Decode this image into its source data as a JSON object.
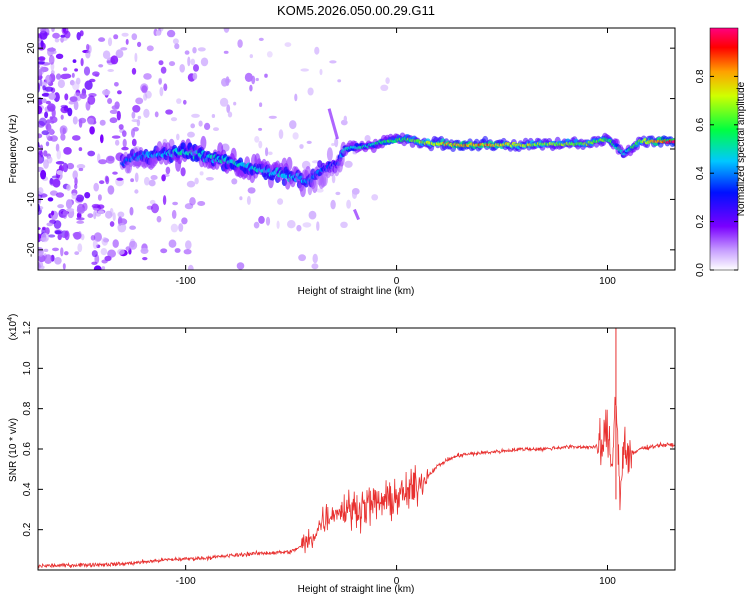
{
  "title": "KOM5.2026.050.00.29.G11",
  "chart_data": [
    {
      "type": "heatmap",
      "xlabel": "Height of straight line (km)",
      "ylabel": "Frequency (Hz)",
      "xlim": [
        -170,
        132
      ],
      "ylim": [
        -24,
        24
      ],
      "xticks": [
        -100,
        0,
        100
      ],
      "xtick_labels": [
        "-100",
        "0",
        "100"
      ],
      "yticks": [
        -20,
        -10,
        0,
        10,
        20
      ],
      "ytick_labels": [
        "-20",
        "-10",
        "0",
        "10",
        "20"
      ],
      "colorbar": {
        "label": "Normalized spectral amplitude",
        "range": [
          0.0,
          1.0
        ],
        "ticks": [
          0.0,
          0.2,
          0.4,
          0.6,
          0.8
        ],
        "tick_labels": [
          "0.0",
          "0.2",
          "0.4",
          "0.6",
          "0.8"
        ]
      },
      "ridge": [
        {
          "x": -130,
          "y": -2.5,
          "a": 0.35
        },
        {
          "x": -120,
          "y": -1.5,
          "a": 0.4
        },
        {
          "x": -110,
          "y": -1.0,
          "a": 0.45
        },
        {
          "x": -100,
          "y": -0.5,
          "a": 0.5
        },
        {
          "x": -90,
          "y": -1.5,
          "a": 0.45
        },
        {
          "x": -80,
          "y": -2.5,
          "a": 0.5
        },
        {
          "x": -70,
          "y": -3.5,
          "a": 0.45
        },
        {
          "x": -60,
          "y": -4.5,
          "a": 0.45
        },
        {
          "x": -50,
          "y": -5.5,
          "a": 0.45
        },
        {
          "x": -42,
          "y": -6.5,
          "a": 0.4
        },
        {
          "x": -35,
          "y": -4.0,
          "a": 0.35
        },
        {
          "x": -28,
          "y": -3.0,
          "a": 0.3
        },
        {
          "x": -25,
          "y": 0.0,
          "a": 0.45
        },
        {
          "x": -15,
          "y": 0.5,
          "a": 0.5
        },
        {
          "x": -5,
          "y": 1.5,
          "a": 0.55
        },
        {
          "x": 5,
          "y": 2.0,
          "a": 0.6
        },
        {
          "x": 15,
          "y": 1.2,
          "a": 0.7
        },
        {
          "x": 30,
          "y": 0.8,
          "a": 0.85
        },
        {
          "x": 45,
          "y": 0.8,
          "a": 0.8
        },
        {
          "x": 60,
          "y": 0.8,
          "a": 0.7
        },
        {
          "x": 75,
          "y": 1.0,
          "a": 0.65
        },
        {
          "x": 90,
          "y": 1.0,
          "a": 0.65
        },
        {
          "x": 100,
          "y": 2.0,
          "a": 0.6
        },
        {
          "x": 108,
          "y": -1.0,
          "a": 0.45
        },
        {
          "x": 115,
          "y": 1.5,
          "a": 0.65
        },
        {
          "x": 125,
          "y": 1.5,
          "a": 0.85
        },
        {
          "x": 132,
          "y": 1.5,
          "a": 0.95
        }
      ]
    },
    {
      "type": "line",
      "xlabel": "Height of straight line (km)",
      "ylabel": "SNR (10 * v/v)",
      "scale_label": "(x10",
      "scale_exp": "4",
      "scale_close": ")",
      "xlim": [
        -170,
        132
      ],
      "ylim": [
        0.0,
        1.2
      ],
      "xticks": [
        -100,
        0,
        100
      ],
      "xtick_labels": [
        "-100",
        "0",
        "100"
      ],
      "yticks": [
        0.2,
        0.4,
        0.6,
        0.8,
        1.0,
        1.2
      ],
      "ytick_labels": [
        "0.2",
        "0.4",
        "0.6",
        "0.8",
        "1.0",
        "1.2"
      ],
      "series": [
        {
          "name": "SNR",
          "color": "#e8302f",
          "x": [
            -170,
            -150,
            -130,
            -110,
            -90,
            -70,
            -50,
            -40,
            -35,
            -30,
            -25,
            -20,
            -15,
            -10,
            -5,
            0,
            5,
            10,
            15,
            20,
            25,
            30,
            40,
            50,
            60,
            70,
            80,
            90,
            95,
            98,
            100,
            102,
            104,
            106,
            108,
            110,
            115,
            120,
            125,
            132
          ],
          "y": [
            0.02,
            0.025,
            0.03,
            0.05,
            0.06,
            0.08,
            0.09,
            0.15,
            0.25,
            0.28,
            0.3,
            0.3,
            0.32,
            0.33,
            0.34,
            0.36,
            0.38,
            0.42,
            0.47,
            0.52,
            0.55,
            0.57,
            0.58,
            0.59,
            0.6,
            0.6,
            0.61,
            0.61,
            0.61,
            0.62,
            0.7,
            0.5,
            0.9,
            0.35,
            0.65,
            0.55,
            0.6,
            0.61,
            0.62,
            0.62
          ]
        }
      ]
    }
  ]
}
